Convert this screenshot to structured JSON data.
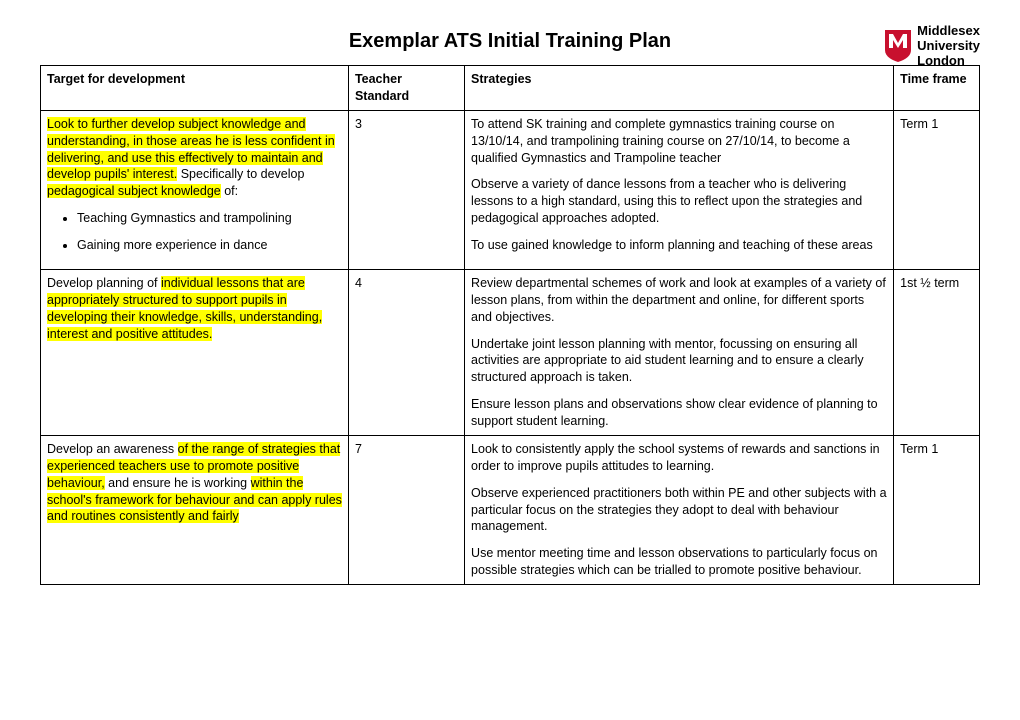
{
  "title": "Exemplar ATS Initial Training Plan",
  "logo": {
    "line1": "Middlesex",
    "line2": "University",
    "line3": "London",
    "shield_color": "#c8102e"
  },
  "columns": {
    "target": "Target for development",
    "standard": "Teacher Standard",
    "strategies": "Strategies",
    "timeframe": "Time frame"
  },
  "rows": [
    {
      "target_segments": [
        {
          "text": "Look to further develop subject knowledge and understanding, in those areas he is less confident in delivering, and use this effectively to maintain and develop pupils' interest.",
          "hl": true
        },
        {
          "text": " Specifically to develop ",
          "hl": false
        },
        {
          "text": "pedagogical subject knowledge",
          "hl": true
        },
        {
          "text": " of:",
          "hl": false
        }
      ],
      "bullets": [
        "Teaching Gymnastics and trampolining",
        "Gaining more experience in dance"
      ],
      "standard": "3",
      "strategies": [
        "To attend SK training and complete gymnastics training course on 13/10/14, and trampolining training course on 27/10/14, to become a qualified Gymnastics and Trampoline teacher",
        "Observe a variety of dance lessons from a teacher who is delivering lessons to a high standard, using this to reflect upon the strategies and pedagogical approaches adopted.",
        "To use gained knowledge to inform planning and teaching of these areas"
      ],
      "timeframe": "Term 1"
    },
    {
      "target_segments": [
        {
          "text": "Develop planning of ",
          "hl": false
        },
        {
          "text": "individual lessons that are appropriately structured to support pupils in developing their knowledge, skills, understanding, interest and positive attitudes.",
          "hl": true
        }
      ],
      "bullets": [],
      "standard": "4",
      "strategies": [
        "Review departmental schemes of work and look at examples of a variety of lesson plans, from within the department and online, for different sports and objectives.",
        "Undertake joint lesson planning with mentor, focussing on ensuring all activities are appropriate to aid student learning and to ensure a clearly structured approach is taken.",
        "Ensure lesson plans and observations show clear evidence of planning to support student learning."
      ],
      "timeframe": "1st ½ term"
    },
    {
      "target_segments": [
        {
          "text": "Develop an awareness ",
          "hl": false
        },
        {
          "text": "of the range of strategies that experienced teachers use to promote positive behaviour,",
          "hl": true
        },
        {
          "text": " and ensure he is working ",
          "hl": false
        },
        {
          "text": "within the school's framework for behaviour and can apply rules and routines consistently and fairly",
          "hl": true
        }
      ],
      "bullets": [],
      "standard": "7",
      "strategies": [
        "Look to consistently apply the school systems of rewards and sanctions in order to improve pupils attitudes to learning.",
        "Observe experienced practitioners both within PE and other subjects with a particular focus on the strategies they adopt to deal with behaviour management.",
        "Use mentor meeting time and lesson observations to particularly focus on possible strategies which can be trialled to promote positive behaviour."
      ],
      "timeframe": "Term 1"
    }
  ]
}
